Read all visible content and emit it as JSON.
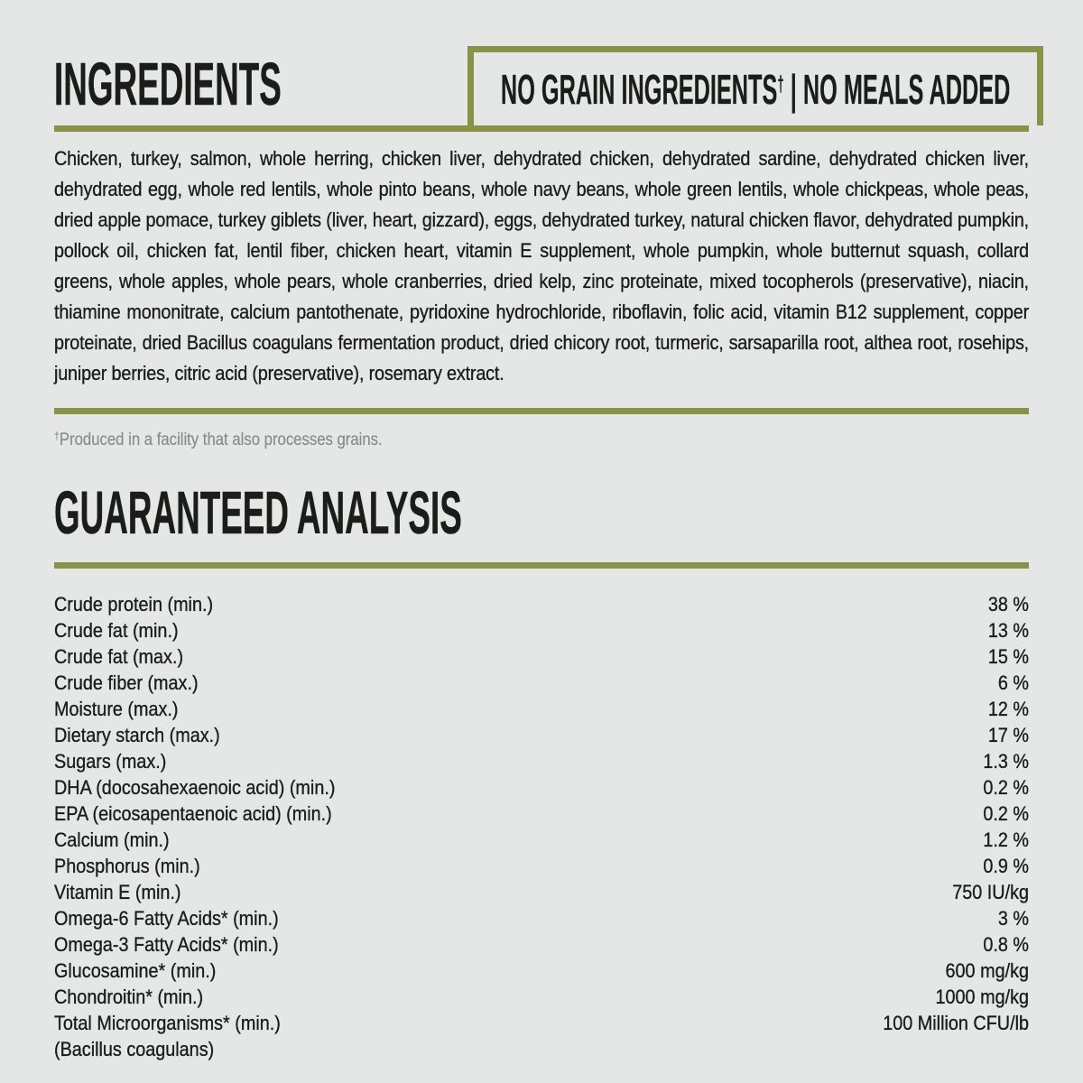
{
  "theme": {
    "bg": "#e5e7e7",
    "accent": "#8a9148",
    "ink": "#1c1c1a",
    "muted": "#8a8c8c"
  },
  "ingredients_section": {
    "title": "INGREDIENTS",
    "badge": {
      "left": "NO GRAIN INGREDIENTS",
      "dagger": "†",
      "right": " | NO MEALS ADDED"
    },
    "body": "Chicken, turkey, salmon, whole herring, chicken liver, dehydrated chicken, dehydrated sardine, dehydrated chicken liver, dehydrated egg, whole red lentils, whole pinto beans, whole navy beans, whole green lentils, whole chickpeas, whole peas, dried apple pomace, turkey giblets (liver, heart, gizzard), eggs, dehydrated turkey, natural chicken flavor, dehydrated pumpkin, pollock oil, chicken fat, lentil fiber, chicken heart, vitamin E supplement, whole pumpkin, whole butternut squash, collard greens, whole apples, whole pears, whole cranberries, dried kelp, zinc proteinate, mixed tocopherols (preservative), niacin, thiamine mononitrate, calcium pantothenate, pyridoxine hydrochloride, riboflavin, folic acid, vitamin B12 supplement, copper proteinate, dried Bacillus coagulans fermentation product, dried chicory root, turmeric, sarsaparilla root, althea root, rosehips, juniper berries, citric acid (preservative), rosemary extract.",
    "footnote_dagger": "†",
    "footnote_text": "Produced in a facility that also processes grains."
  },
  "analysis_section": {
    "title": "GUARANTEED ANALYSIS",
    "rows": [
      {
        "label": "Crude protein (min.)",
        "value": "38 %"
      },
      {
        "label": "Crude fat (min.)",
        "value": "13 %"
      },
      {
        "label": "Crude fat (max.)",
        "value": "15 %"
      },
      {
        "label": "Crude fiber (max.)",
        "value": "6 %"
      },
      {
        "label": "Moisture (max.)",
        "value": "12 %"
      },
      {
        "label": "Dietary starch (max.)",
        "value": "17 %"
      },
      {
        "label": "Sugars (max.)",
        "value": "1.3 %"
      },
      {
        "label": "DHA (docosahexaenoic acid) (min.)",
        "value": "0.2 %"
      },
      {
        "label": "EPA (eicosapentaenoic acid) (min.)",
        "value": "0.2 %"
      },
      {
        "label": "Calcium (min.)",
        "value": "1.2 %"
      },
      {
        "label": "Phosphorus (min.)",
        "value": "0.9 %"
      },
      {
        "label": "Vitamin E (min.)",
        "value": "750 IU/kg"
      },
      {
        "label": "Omega-6 Fatty Acids* (min.)",
        "value": "3 %"
      },
      {
        "label": "Omega-3 Fatty Acids* (min.)",
        "value": "0.8 %"
      },
      {
        "label": "Glucosamine* (min.)",
        "value": "600 mg/kg"
      },
      {
        "label": "Chondroitin* (min.)",
        "value": "1000 mg/kg"
      },
      {
        "label": "Total Microorganisms* (min.)",
        "value": "100 Million CFU/lb"
      },
      {
        "label": "(Bacillus coagulans)",
        "value": ""
      }
    ]
  }
}
